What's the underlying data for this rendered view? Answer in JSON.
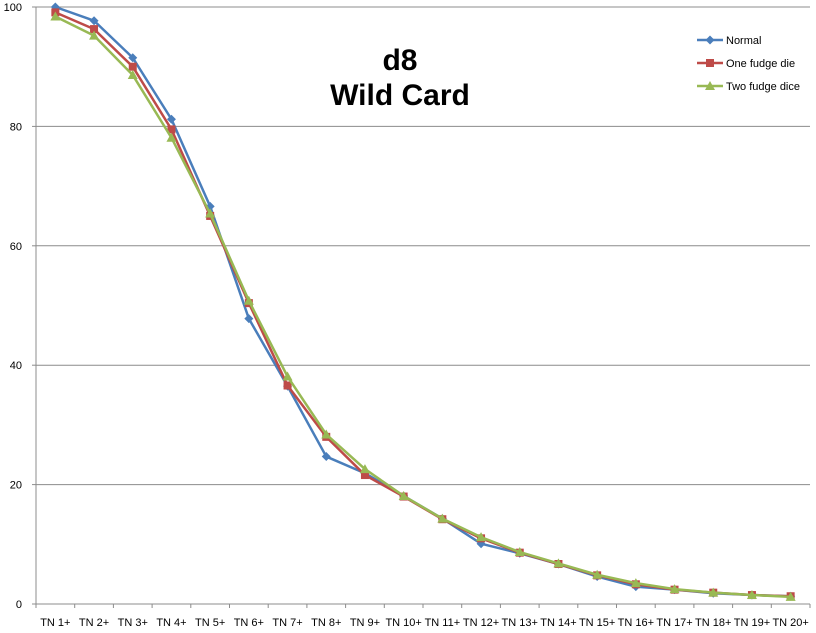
{
  "chart_data": {
    "type": "line",
    "title_lines": [
      "d8",
      "Wild Card"
    ],
    "xlabel": "",
    "ylabel": "",
    "ylim": [
      0,
      100
    ],
    "yticks": [
      0,
      20,
      40,
      60,
      80,
      100
    ],
    "grid": true,
    "legend_position": "top-right",
    "categories": [
      "TN 1+",
      "TN 2+",
      "TN 3+",
      "TN 4+",
      "TN 5+",
      "TN 6+",
      "TN 7+",
      "TN 8+",
      "TN 9+",
      "TN 10+",
      "TN 11+",
      "TN 12+",
      "TN 13+",
      "TN 14+",
      "TN 15+",
      "TN 16+",
      "TN 17+",
      "TN 18+",
      "TN 19+",
      "TN 20+"
    ],
    "series": [
      {
        "name": "Normal",
        "color": "#4a7ebb",
        "marker": "diamond",
        "values": [
          100,
          97.7,
          91.5,
          81.2,
          66.6,
          47.8,
          36.5,
          24.7,
          21.9,
          18.1,
          14.3,
          10.1,
          8.5,
          6.7,
          4.6,
          2.9,
          2.4,
          1.8,
          1.5,
          1.3
        ]
      },
      {
        "name": "One fudge die",
        "color": "#be4b48",
        "marker": "square",
        "values": [
          99.1,
          96.3,
          90.0,
          79.5,
          65.0,
          50.4,
          36.6,
          28.0,
          21.6,
          18.0,
          14.2,
          11.0,
          8.6,
          6.7,
          4.8,
          3.3,
          2.4,
          1.9,
          1.5,
          1.3
        ]
      },
      {
        "name": "Two fudge dice",
        "color": "#98b954",
        "marker": "triangle",
        "values": [
          98.4,
          95.2,
          88.6,
          78.1,
          65.4,
          50.8,
          38.1,
          28.4,
          22.6,
          18.1,
          14.3,
          11.2,
          8.7,
          6.8,
          4.9,
          3.5,
          2.5,
          1.9,
          1.5,
          1.2
        ]
      }
    ]
  }
}
